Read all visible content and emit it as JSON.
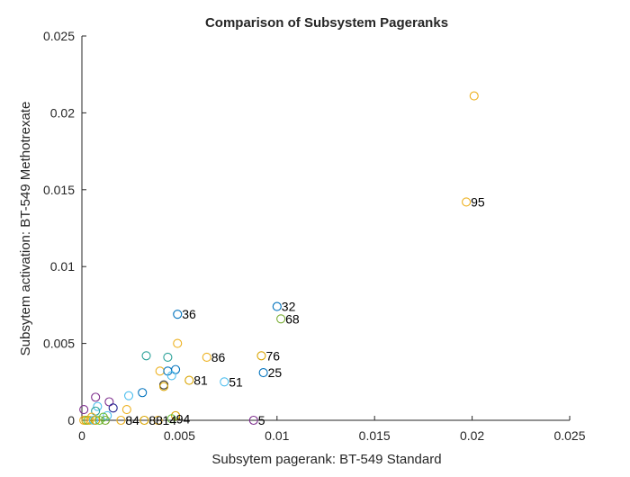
{
  "chart_data": {
    "type": "scatter",
    "title": "Comparison of Subsystem Pageranks",
    "xlabel": "Subsytem pagerank: BT-549 Standard",
    "ylabel": "Subsytem activation: BT-549 Methotrexate",
    "xlim": [
      0,
      0.025
    ],
    "ylim": [
      0,
      0.025
    ],
    "xticks": [
      "0",
      "0.005",
      "0.01",
      "0.015",
      "0.02",
      "0.025"
    ],
    "yticks": [
      "0",
      "0.005",
      "0.01",
      "0.015",
      "0.02",
      "0.025"
    ],
    "grid": false,
    "marker": "open-circle",
    "palette": [
      "#0072BD",
      "#EDB120",
      "#7E2F8E",
      "#77AC30",
      "#4DBEEE",
      "#2AA198",
      "#D9A400",
      "#1F1F8F",
      "#6BBF3A",
      "#333333"
    ],
    "points": [
      {
        "x": 0.0201,
        "y": 0.0211,
        "color": "#EDB120",
        "label": ""
      },
      {
        "x": 0.0197,
        "y": 0.0142,
        "color": "#EDB120",
        "label": "95"
      },
      {
        "x": 0.01,
        "y": 0.0074,
        "color": "#0072BD",
        "label": "32"
      },
      {
        "x": 0.0102,
        "y": 0.0066,
        "color": "#77AC30",
        "label": "68"
      },
      {
        "x": 0.0049,
        "y": 0.0069,
        "color": "#0072BD",
        "label": "36"
      },
      {
        "x": 0.0092,
        "y": 0.0042,
        "color": "#D9A400",
        "label": "76"
      },
      {
        "x": 0.0093,
        "y": 0.0031,
        "color": "#0072BD",
        "label": "25"
      },
      {
        "x": 0.0064,
        "y": 0.0041,
        "color": "#EDB120",
        "label": "86"
      },
      {
        "x": 0.0055,
        "y": 0.0026,
        "color": "#D9A400",
        "label": "81"
      },
      {
        "x": 0.0073,
        "y": 0.0025,
        "color": "#4DBEEE",
        "label": "51"
      },
      {
        "x": 0.0088,
        "y": 0.0,
        "color": "#7E2F8E",
        "label": "5"
      },
      {
        "x": 0.0049,
        "y": 0.005,
        "color": "#EDB120",
        "label": ""
      },
      {
        "x": 0.0033,
        "y": 0.0042,
        "color": "#2AA198",
        "label": ""
      },
      {
        "x": 0.0044,
        "y": 0.0041,
        "color": "#2AA198",
        "label": ""
      },
      {
        "x": 0.004,
        "y": 0.0032,
        "color": "#EDB120",
        "label": ""
      },
      {
        "x": 0.0044,
        "y": 0.0032,
        "color": "#0072BD",
        "label": ""
      },
      {
        "x": 0.0048,
        "y": 0.0033,
        "color": "#0072BD",
        "label": ""
      },
      {
        "x": 0.0046,
        "y": 0.0029,
        "color": "#4DBEEE",
        "label": ""
      },
      {
        "x": 0.0042,
        "y": 0.0023,
        "color": "#333333",
        "label": ""
      },
      {
        "x": 0.0042,
        "y": 0.0022,
        "color": "#D9A400",
        "label": ""
      },
      {
        "x": 0.0031,
        "y": 0.0018,
        "color": "#0072BD",
        "label": ""
      },
      {
        "x": 0.0024,
        "y": 0.0016,
        "color": "#4DBEEE",
        "label": ""
      },
      {
        "x": 0.0014,
        "y": 0.0012,
        "color": "#7E2F8E",
        "label": ""
      },
      {
        "x": 0.0016,
        "y": 0.0008,
        "color": "#1F1F8F",
        "label": ""
      },
      {
        "x": 0.0007,
        "y": 0.0015,
        "color": "#7E2F8E",
        "label": ""
      },
      {
        "x": 0.0008,
        "y": 0.0009,
        "color": "#4DBEEE",
        "label": ""
      },
      {
        "x": 0.0007,
        "y": 0.0006,
        "color": "#2AA198",
        "label": ""
      },
      {
        "x": 0.0001,
        "y": 0.0007,
        "color": "#7E2F8E",
        "label": ""
      },
      {
        "x": 0.0023,
        "y": 0.0007,
        "color": "#EDB120",
        "label": ""
      },
      {
        "x": 0.0013,
        "y": 0.0003,
        "color": "#4DBEEE",
        "label": ""
      },
      {
        "x": 0.0011,
        "y": 0.0002,
        "color": "#6BBF3A",
        "label": ""
      },
      {
        "x": 0.0005,
        "y": 0.0002,
        "color": "#EDB120",
        "label": ""
      },
      {
        "x": 0.0048,
        "y": 0.0003,
        "color": "#D9A400",
        "label": ""
      },
      {
        "x": 0.0001,
        "y": 0.0,
        "color": "#EDB120",
        "label": ""
      },
      {
        "x": 0.0002,
        "y": 0.0,
        "color": "#D9A400",
        "label": ""
      },
      {
        "x": 0.0003,
        "y": 0.0,
        "color": "#6BBF3A",
        "label": ""
      },
      {
        "x": 0.0004,
        "y": 0.0,
        "color": "#EDB120",
        "label": ""
      },
      {
        "x": 0.0006,
        "y": 0.0,
        "color": "#4DBEEE",
        "label": ""
      },
      {
        "x": 0.0007,
        "y": 0.0,
        "color": "#D9A400",
        "label": ""
      },
      {
        "x": 0.0009,
        "y": 0.0,
        "color": "#6BBF3A",
        "label": ""
      },
      {
        "x": 0.0012,
        "y": 0.0,
        "color": "#77AC30",
        "label": ""
      },
      {
        "x": 0.002,
        "y": 0.0,
        "color": "#EDB120",
        "label": "84"
      },
      {
        "x": 0.0032,
        "y": 0.0,
        "color": "#D9A400",
        "label": "88"
      },
      {
        "x": 0.0039,
        "y": 0.0,
        "color": "#EDB120",
        "label": "14"
      },
      {
        "x": 0.0046,
        "y": 0.0001,
        "color": "#6BBF3A",
        "label": "94"
      }
    ]
  }
}
